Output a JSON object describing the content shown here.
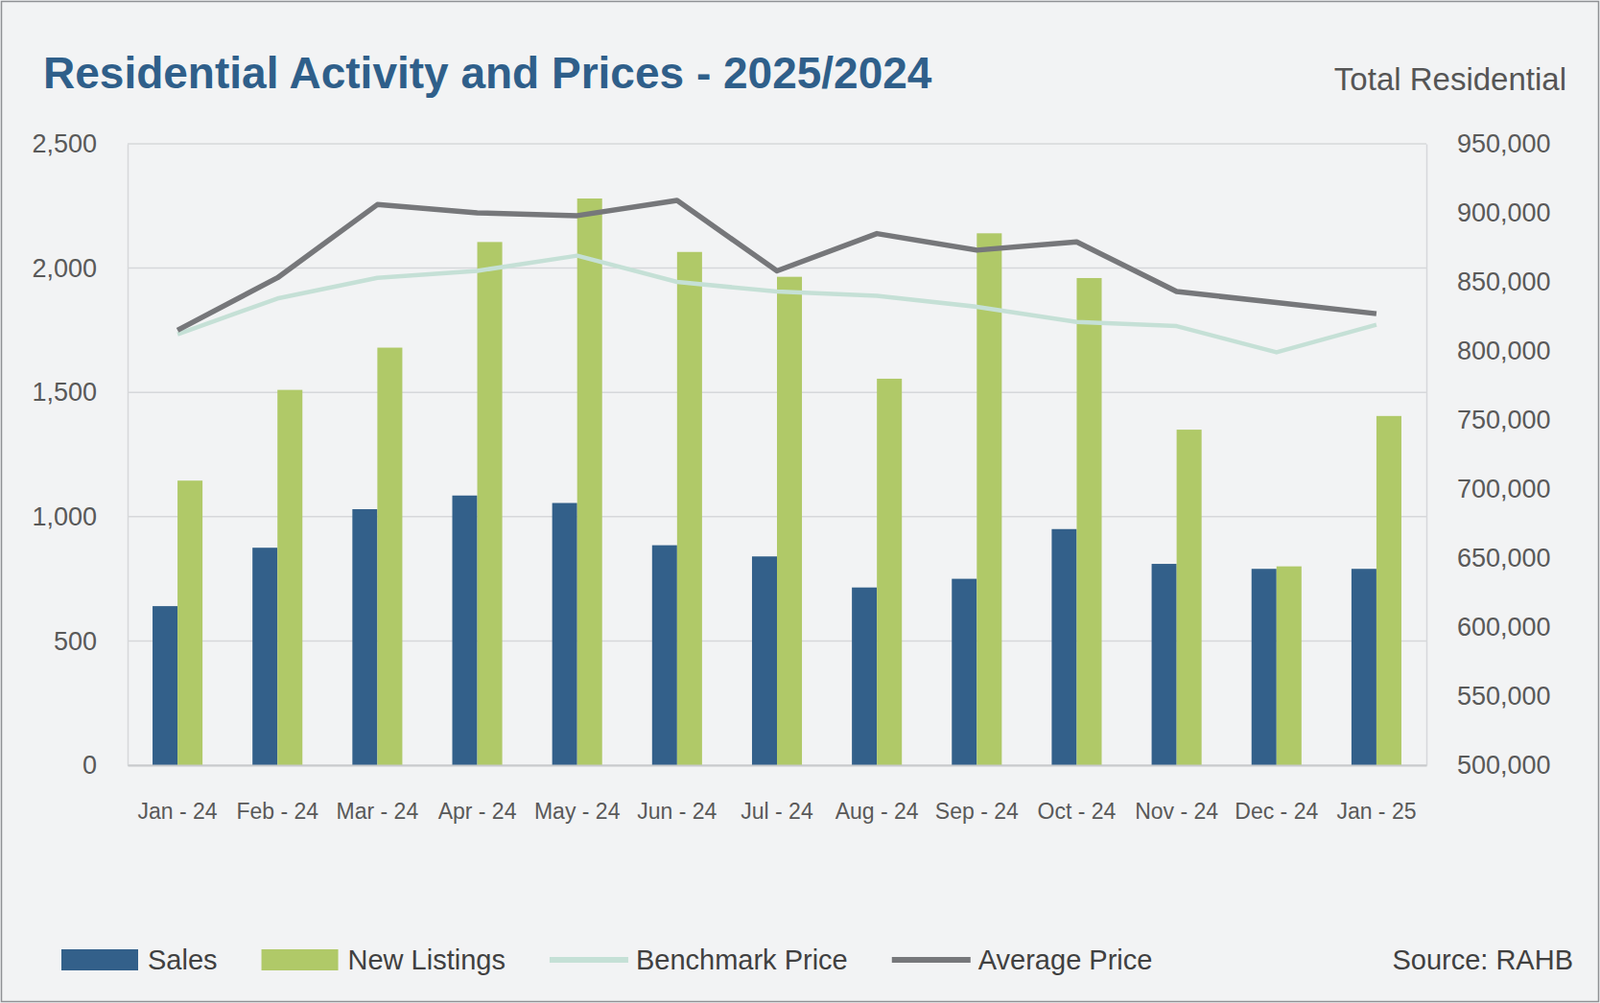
{
  "chart_data": {
    "type": "bar",
    "title": "Residential Activity and Prices - 2025/2024",
    "y2_label": "Total Residential",
    "source": "Source: RAHB",
    "categories": [
      "Jan - 24",
      "Feb - 24",
      "Mar - 24",
      "Apr - 24",
      "May - 24",
      "Jun - 24",
      "Jul - 24",
      "Aug - 24",
      "Sep - 24",
      "Oct - 24",
      "Nov - 24",
      "Dec - 24",
      "Jan - 25"
    ],
    "series": [
      {
        "name": "Sales",
        "color": "#33608a",
        "values": [
          640,
          875,
          1030,
          1085,
          1055,
          885,
          840,
          715,
          750,
          950,
          810,
          790,
          790
        ]
      },
      {
        "name": "New Listings",
        "color": "#b0c968",
        "values": [
          1145,
          1510,
          1680,
          2105,
          2280,
          2065,
          1965,
          1555,
          2140,
          1960,
          1350,
          800,
          1405
        ]
      },
      {
        "name": "Benchmark Price",
        "type": "line",
        "axis": "y2",
        "color": "#c5e0d6",
        "values": [
          812000,
          838000,
          853000,
          858000,
          869000,
          850000,
          843000,
          840000,
          832000,
          821000,
          818000,
          799000,
          819000
        ]
      },
      {
        "name": "Average Price",
        "type": "line",
        "axis": "y2",
        "color": "#76777a",
        "values": [
          815000,
          853000,
          906000,
          900000,
          898000,
          909000,
          858000,
          885000,
          873000,
          879000,
          843000,
          835000,
          827000
        ]
      }
    ],
    "ylim": [
      0,
      2500
    ],
    "yticks": [
      0,
      500,
      {
        "value": 1000,
        "label": "1,000"
      },
      {
        "value": 1500,
        "label": "1,500"
      },
      {
        "value": 2000,
        "label": "2,000"
      },
      {
        "value": 2500,
        "label": "2,500"
      }
    ],
    "y2lim": [
      500000,
      950000
    ],
    "y2ticks": [
      {
        "value": 500000,
        "label": "500,000"
      },
      {
        "value": 550000,
        "label": "550,000"
      },
      {
        "value": 600000,
        "label": "600,000"
      },
      {
        "value": 650000,
        "label": "650,000"
      },
      {
        "value": 700000,
        "label": "700,000"
      },
      {
        "value": 750000,
        "label": "750,000"
      },
      {
        "value": 800000,
        "label": "800,000"
      },
      {
        "value": 850000,
        "label": "850,000"
      },
      {
        "value": 900000,
        "label": "900,000"
      },
      {
        "value": 950000,
        "label": "950,000"
      }
    ],
    "grid": true,
    "legend": "bottom"
  }
}
